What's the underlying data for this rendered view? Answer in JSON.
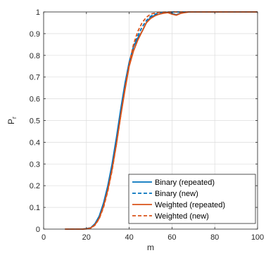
{
  "chart_data": {
    "type": "line",
    "xlabel": "m",
    "ylabel_main": "P",
    "ylabel_sub": "r",
    "xlim": [
      0,
      100
    ],
    "ylim": [
      0,
      1
    ],
    "xticks": [
      0,
      20,
      40,
      60,
      80,
      100
    ],
    "yticks": [
      0,
      0.1,
      0.2,
      0.3,
      0.4,
      0.5,
      0.6,
      0.7,
      0.8,
      0.9,
      1
    ],
    "xtick_labels": [
      "0",
      "20",
      "40",
      "60",
      "80",
      "100"
    ],
    "ytick_labels": [
      "0",
      "0.1",
      "0.2",
      "0.3",
      "0.4",
      "0.5",
      "0.6",
      "0.7",
      "0.8",
      "0.9",
      "1"
    ],
    "grid": true,
    "legend_position": "bottom-right",
    "series": [
      {
        "name": "Binary (repeated)",
        "color": "#0072BD",
        "dash": "solid",
        "x": [
          10,
          14,
          18,
          20,
          22,
          24,
          26,
          28,
          30,
          32,
          34,
          36,
          38,
          40,
          42,
          44,
          46,
          48,
          50,
          52,
          54,
          56,
          58,
          60,
          62,
          64,
          66,
          68,
          70,
          80,
          90,
          100
        ],
        "y": [
          0,
          0,
          0,
          0.002,
          0.006,
          0.025,
          0.06,
          0.12,
          0.2,
          0.3,
          0.42,
          0.55,
          0.67,
          0.77,
          0.84,
          0.88,
          0.91,
          0.95,
          0.975,
          0.985,
          0.99,
          0.995,
          0.998,
          0.993,
          0.987,
          0.995,
          0.998,
          1,
          1,
          1,
          1,
          1
        ]
      },
      {
        "name": "Binary (new)",
        "color": "#0072BD",
        "dash": "dashed",
        "x": [
          10,
          14,
          18,
          20,
          22,
          24,
          26,
          28,
          30,
          32,
          34,
          36,
          38,
          40,
          42,
          44,
          46,
          48,
          50,
          52,
          54,
          56,
          58,
          60,
          62,
          64,
          66,
          68,
          70,
          80,
          90,
          100
        ],
        "y": [
          0,
          0,
          0,
          0.002,
          0.006,
          0.022,
          0.058,
          0.115,
          0.195,
          0.29,
          0.41,
          0.54,
          0.66,
          0.76,
          0.84,
          0.89,
          0.93,
          0.96,
          0.98,
          0.99,
          0.995,
          0.997,
          0.999,
          1,
          1,
          1,
          1,
          1,
          1,
          1,
          1,
          1
        ]
      },
      {
        "name": "Weighted (repeated)",
        "color": "#D95319",
        "dash": "solid",
        "x": [
          10,
          14,
          18,
          20,
          22,
          24,
          26,
          28,
          30,
          32,
          34,
          36,
          38,
          40,
          42,
          44,
          46,
          48,
          50,
          52,
          54,
          56,
          58,
          60,
          62,
          64,
          66,
          68,
          70,
          80,
          90,
          100
        ],
        "y": [
          0,
          0,
          0,
          0.001,
          0.005,
          0.02,
          0.05,
          0.105,
          0.18,
          0.275,
          0.39,
          0.52,
          0.64,
          0.75,
          0.82,
          0.87,
          0.91,
          0.95,
          0.97,
          0.982,
          0.99,
          0.994,
          0.997,
          0.99,
          0.985,
          0.993,
          0.997,
          1,
          1,
          1,
          1,
          1
        ]
      },
      {
        "name": "Weighted (new)",
        "color": "#D95319",
        "dash": "dashed",
        "x": [
          10,
          14,
          18,
          20,
          22,
          24,
          26,
          28,
          30,
          32,
          34,
          36,
          38,
          40,
          42,
          44,
          46,
          48,
          50,
          52,
          54,
          56,
          58,
          60,
          62,
          64,
          66,
          68,
          70,
          80,
          90,
          100
        ],
        "y": [
          0,
          0,
          0,
          0.001,
          0.004,
          0.018,
          0.048,
          0.1,
          0.175,
          0.27,
          0.39,
          0.52,
          0.65,
          0.76,
          0.85,
          0.91,
          0.95,
          0.975,
          0.99,
          0.995,
          0.998,
          0.999,
          1,
          1,
          1,
          1,
          1,
          1,
          1,
          1,
          1,
          1
        ]
      }
    ]
  }
}
